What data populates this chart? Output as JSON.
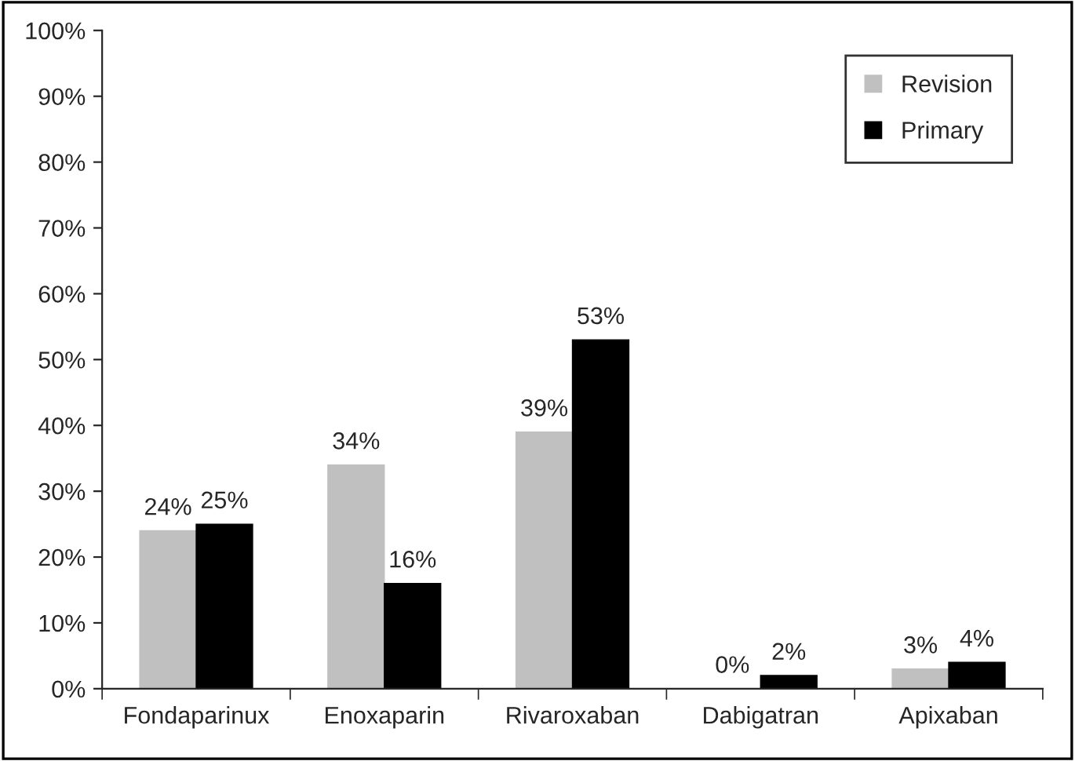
{
  "chart_data": {
    "type": "bar",
    "categories": [
      "Fondaparinux",
      "Enoxaparin",
      "Rivaroxaban",
      "Dabigatran",
      "Apixaban"
    ],
    "series": [
      {
        "name": "Revision",
        "color": "#c0c0c0",
        "values": [
          24,
          34,
          39,
          0,
          3
        ],
        "value_labels": [
          "24%",
          "34%",
          "39%",
          "0%",
          "3%"
        ]
      },
      {
        "name": "Primary",
        "color": "#000000",
        "values": [
          25,
          16,
          53,
          2,
          4
        ],
        "value_labels": [
          "25%",
          "16%",
          "53%",
          "2%",
          "4%"
        ]
      }
    ],
    "ylim": [
      0,
      100
    ],
    "yticks": [
      {
        "value": 0,
        "label": "0%"
      },
      {
        "value": 10,
        "label": "10%"
      },
      {
        "value": 20,
        "label": "20%"
      },
      {
        "value": 30,
        "label": "30%"
      },
      {
        "value": 40,
        "label": "40%"
      },
      {
        "value": 50,
        "label": "50%"
      },
      {
        "value": 60,
        "label": "60%"
      },
      {
        "value": 70,
        "label": "70%"
      },
      {
        "value": 80,
        "label": "80%"
      },
      {
        "value": 90,
        "label": "90%"
      },
      {
        "value": 100,
        "label": "100%"
      }
    ],
    "legend": "top right",
    "grid": false
  }
}
